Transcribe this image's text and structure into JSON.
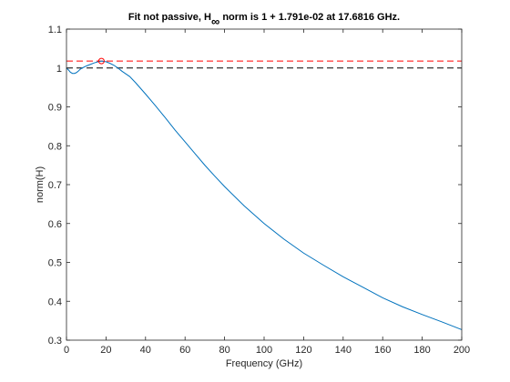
{
  "chart_data": {
    "type": "line",
    "title_parts": {
      "prefix": "Fit not passive, H",
      "subscript": "∞",
      "suffix": " norm is 1 + 1.791e-02 at 17.6816 GHz."
    },
    "xlabel": "Frequency (GHz)",
    "ylabel": "norm(H)",
    "xlim": [
      0,
      200
    ],
    "ylim": [
      0.3,
      1.1
    ],
    "xticks": [
      0,
      20,
      40,
      60,
      80,
      100,
      120,
      140,
      160,
      180,
      200
    ],
    "yticks": [
      0.3,
      0.4,
      0.5,
      0.6,
      0.7,
      0.8,
      0.9,
      1,
      1.1
    ],
    "grid": false,
    "series": [
      {
        "color": "#0072bd",
        "x": [
          0,
          1,
          2,
          3,
          4,
          5,
          6,
          7,
          8,
          10,
          12,
          14,
          16,
          17.68,
          20,
          22,
          24,
          26,
          28,
          30,
          32,
          35,
          40,
          45,
          50,
          55,
          60,
          65,
          70,
          75,
          80,
          90,
          100,
          110,
          120,
          130,
          140,
          150,
          160,
          170,
          180,
          190,
          200
        ],
        "y": [
          1.0,
          0.995,
          0.989,
          0.986,
          0.986,
          0.988,
          0.992,
          0.997,
          1.0,
          1.005,
          1.009,
          1.013,
          1.016,
          1.0179,
          1.016,
          1.012,
          1.007,
          1.0,
          0.992,
          0.985,
          0.978,
          0.962,
          0.933,
          0.903,
          0.872,
          0.84,
          0.81,
          0.78,
          0.75,
          0.722,
          0.695,
          0.645,
          0.6,
          0.56,
          0.524,
          0.493,
          0.463,
          0.436,
          0.409,
          0.386,
          0.366,
          0.347,
          0.327
        ]
      }
    ],
    "reference_lines": [
      {
        "y": 1.01791,
        "color": "#ff0000",
        "style": "dashed"
      },
      {
        "y": 1.0,
        "color": "#000000",
        "style": "dashed"
      }
    ],
    "markers": [
      {
        "x": 17.6816,
        "y": 1.01791,
        "color": "#ff0000",
        "shape": "circle"
      }
    ]
  }
}
